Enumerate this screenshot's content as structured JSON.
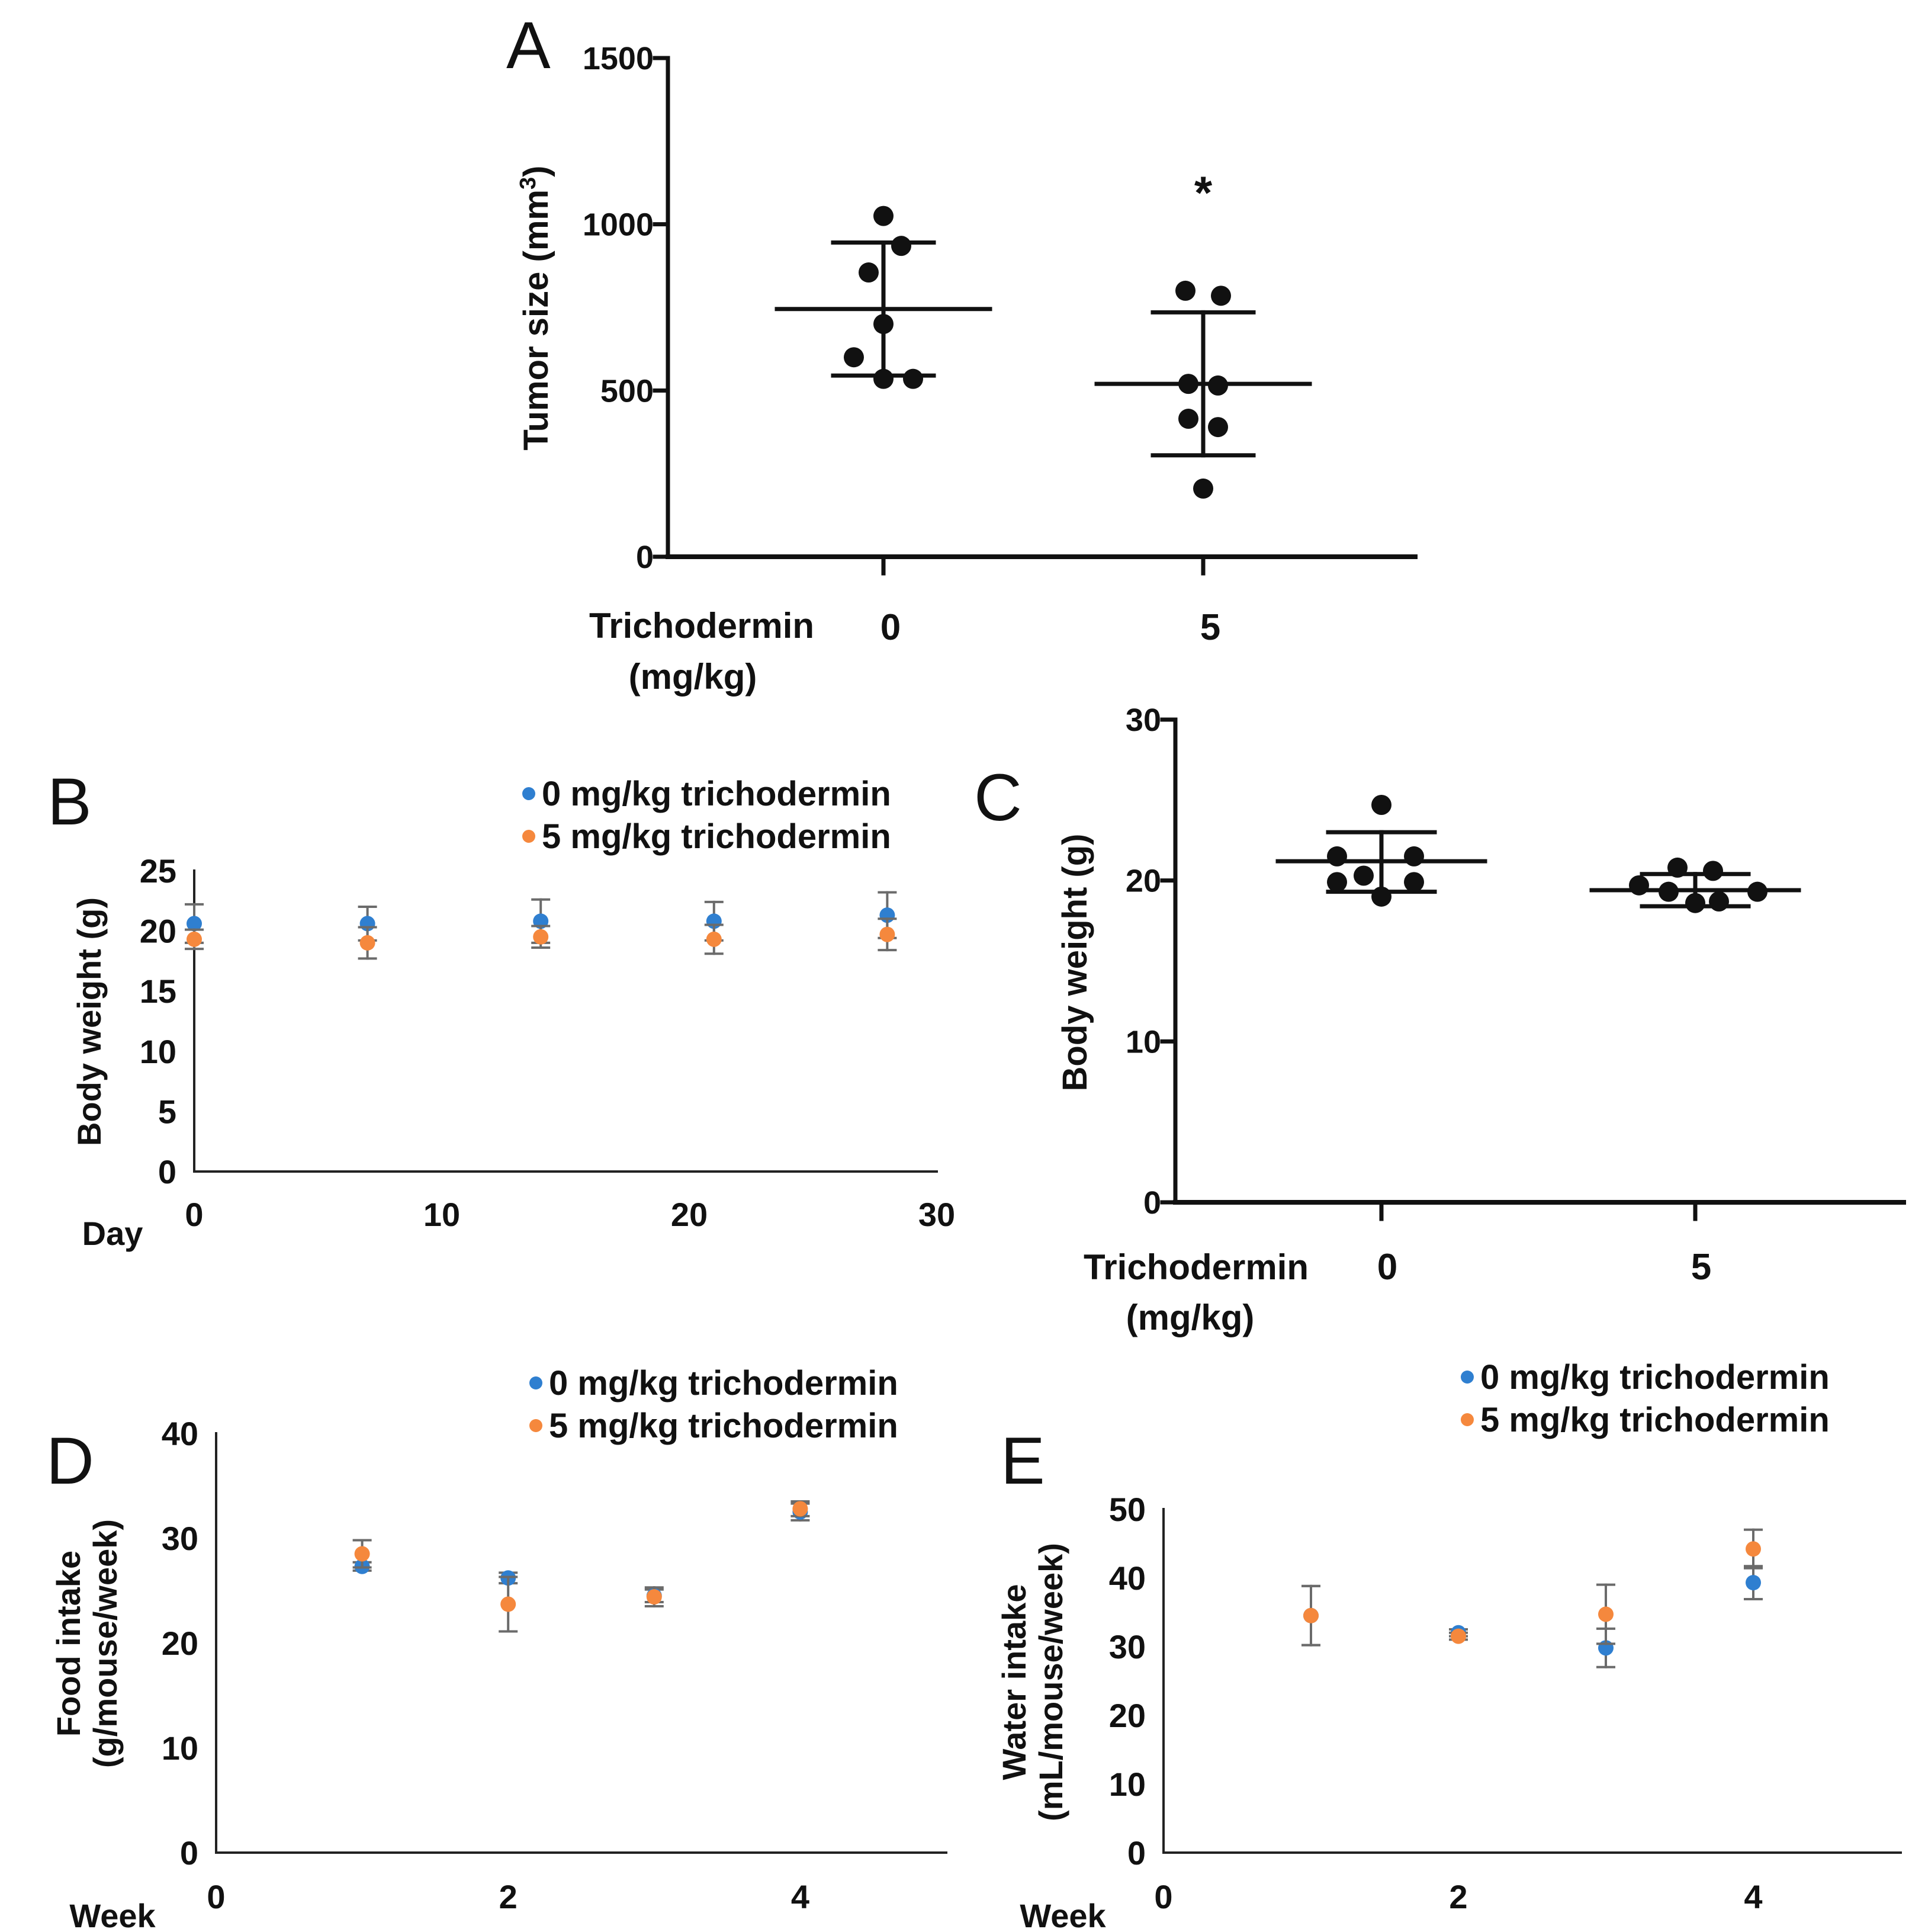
{
  "colors": {
    "series0": "#2f7fd0",
    "series5": "#f5883d",
    "ink": "#111111",
    "errbar": "#6b6b6b"
  },
  "chart_data": [
    {
      "panel": "A",
      "type": "scatter",
      "ylabel_main": "Tumor size (mm",
      "ylabel_sup": "3",
      "ylabel_close": ")",
      "ylim": [
        0,
        1500
      ],
      "yticks": [
        "0",
        "500",
        "1000",
        "1500"
      ],
      "xlabel_line1": "Trichodermin",
      "xlabel_line2": "(mg/kg)",
      "categories": [
        "0",
        "5"
      ],
      "groups": [
        {
          "category": "0",
          "values": [
            1025,
            935,
            855,
            700,
            600,
            535,
            535
          ],
          "mean": 745,
          "sd_low": 545,
          "sd_high": 945
        },
        {
          "category": "5",
          "values": [
            800,
            785,
            520,
            515,
            415,
            390,
            205
          ],
          "mean": 520,
          "sd_low": 305,
          "sd_high": 735
        }
      ],
      "annotation": "*"
    },
    {
      "panel": "B",
      "type": "scatter",
      "ylabel": "Body weight (g)",
      "xlabel": "Day",
      "xlim": [
        0,
        30
      ],
      "ylim": [
        0,
        25
      ],
      "xticks": [
        "0",
        "10",
        "20",
        "30"
      ],
      "yticks": [
        "0",
        "5",
        "10",
        "15",
        "20",
        "25"
      ],
      "legend": [
        "0 mg/kg trichodermin",
        "5 mg/kg trichodermin"
      ],
      "series": [
        {
          "name": "0 mg/kg trichodermin",
          "color_key": "series0",
          "x": [
            0,
            7,
            14,
            21,
            28
          ],
          "y": [
            20.6,
            20.6,
            20.8,
            20.8,
            21.3
          ],
          "err": [
            1.6,
            1.4,
            1.8,
            1.6,
            1.9
          ]
        },
        {
          "name": "5 mg/kg trichodermin",
          "color_key": "series5",
          "x": [
            0,
            7,
            14,
            21,
            28
          ],
          "y": [
            19.3,
            19.0,
            19.5,
            19.3,
            19.7
          ],
          "err": [
            0.8,
            1.3,
            0.9,
            1.2,
            1.3
          ]
        }
      ]
    },
    {
      "panel": "C",
      "type": "scatter",
      "ylabel": "Body weight (g)",
      "ylim": [
        0,
        30
      ],
      "yticks": [
        "0",
        "10",
        "20",
        "30"
      ],
      "xlabel_line1": "Trichodermin",
      "xlabel_line2": "(mg/kg)",
      "categories": [
        "0",
        "5"
      ],
      "groups": [
        {
          "category": "0",
          "values": [
            24.7,
            21.5,
            21.5,
            20.3,
            19.9,
            19.9,
            19.0
          ],
          "mean": 21.2,
          "sd_low": 19.3,
          "sd_high": 23.0
        },
        {
          "category": "5",
          "values": [
            20.8,
            20.6,
            19.7,
            19.3,
            18.7,
            18.6,
            19.3
          ],
          "mean": 19.4,
          "sd_low": 18.4,
          "sd_high": 20.4
        }
      ]
    },
    {
      "panel": "D",
      "type": "scatter",
      "ylabel_line1": "Food intake",
      "ylabel_line2": "(g/mouse/week)",
      "xlabel": "Week",
      "xlim": [
        0,
        5
      ],
      "ylim": [
        0,
        40
      ],
      "xticks": [
        "0",
        "2",
        "4"
      ],
      "yticks": [
        "0",
        "10",
        "20",
        "30",
        "40"
      ],
      "legend": [
        "0 mg/kg trichodermin",
        "5 mg/kg trichodermin"
      ],
      "series": [
        {
          "name": "0 mg/kg trichodermin",
          "color_key": "series0",
          "x": [
            1,
            2,
            3,
            4
          ],
          "y": [
            27.3,
            26.2,
            24.5,
            32.5
          ],
          "err": [
            0.4,
            0.5,
            0.6,
            0.8
          ]
        },
        {
          "name": "5 mg/kg trichodermin",
          "color_key": "series5",
          "x": [
            1,
            2,
            3,
            4
          ],
          "y": [
            28.5,
            23.7,
            24.4,
            32.8
          ],
          "err": [
            1.3,
            2.6,
            0.9,
            0.7
          ]
        }
      ]
    },
    {
      "panel": "E",
      "type": "scatter",
      "ylabel_line1": "Water intake",
      "ylabel_line2": "(mL/mouse/week)",
      "xlabel": "Week",
      "xlim": [
        0,
        5
      ],
      "ylim": [
        0,
        50
      ],
      "xticks": [
        "0",
        "2",
        "4"
      ],
      "yticks": [
        "0",
        "10",
        "20",
        "30",
        "40",
        "50"
      ],
      "legend": [
        "0 mg/kg trichodermin",
        "5 mg/kg trichodermin"
      ],
      "series": [
        {
          "name": "0 mg/kg trichodermin",
          "color_key": "series0",
          "x": [
            1,
            2,
            3,
            4
          ],
          "y": [
            34.5,
            32.0,
            29.8,
            39.3
          ],
          "err": [
            4.3,
            0.5,
            2.8,
            2.4
          ]
        },
        {
          "name": "5 mg/kg trichodermin",
          "color_key": "series5",
          "x": [
            1,
            2,
            3,
            4
          ],
          "y": [
            34.5,
            31.5,
            34.7,
            44.2
          ],
          "err": [
            4.3,
            0.5,
            4.3,
            2.8
          ]
        }
      ]
    }
  ]
}
